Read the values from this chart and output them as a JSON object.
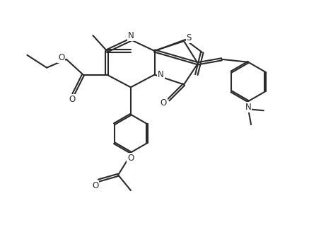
{
  "bg_color": "#ffffff",
  "line_color": "#2a2a2a",
  "line_width": 1.5,
  "font_size": 8.5,
  "fig_width": 4.37,
  "fig_height": 3.18,
  "dpi": 100,
  "xlim": [
    0,
    11
  ],
  "ylim": [
    0,
    8
  ]
}
